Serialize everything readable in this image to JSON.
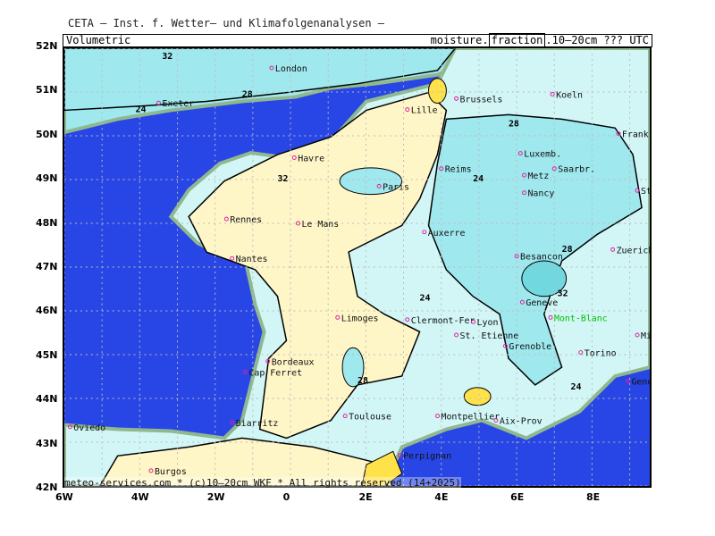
{
  "title": "CETA – Inst. f. Wetter– und Klimafolgenanalysen –",
  "header": {
    "left": "Volumetric",
    "right_prefix": "moisture.",
    "right_box": "fraction",
    "right_suffix": ".10–20cm ??? UTC"
  },
  "footer": "meteo-services.com * (c)10–20cm WKF * All rights reserved (14+2025)",
  "axes": {
    "lon_labels": [
      "6W",
      "4W",
      "2W",
      "0",
      "2E",
      "4E",
      "6E",
      "8E"
    ],
    "lat_labels": [
      "52N",
      "51N",
      "50N",
      "49N",
      "48N",
      "47N",
      "46N",
      "45N",
      "44N",
      "43N",
      "42N"
    ],
    "lon_range": [
      -6,
      9.5
    ],
    "lat_range": [
      42,
      52
    ]
  },
  "colors": {
    "ocean": "#2846e6",
    "land_wet": "#9fe8ee",
    "land_mid": "#d2f6f6",
    "land_dry": "#fff6c8",
    "land_very_dry": "#ffe24a",
    "coast": "#8fb88f"
  },
  "contour_labels": [
    "32",
    "28",
    "24",
    "28",
    "32",
    "24",
    "28",
    "32",
    "24",
    "28",
    "24"
  ],
  "cities": [
    {
      "name": "Exeter",
      "lon": -3.5,
      "lat": 50.75
    },
    {
      "name": "London",
      "lon": -0.5,
      "lat": 51.55
    },
    {
      "name": "Lille",
      "lon": 3.1,
      "lat": 50.6
    },
    {
      "name": "Brussels",
      "lon": 4.4,
      "lat": 50.85
    },
    {
      "name": "Koeln",
      "lon": 6.95,
      "lat": 50.95
    },
    {
      "name": "Frankfurt",
      "lon": 8.7,
      "lat": 50.05
    },
    {
      "name": "Luxemb.",
      "lon": 6.1,
      "lat": 49.6
    },
    {
      "name": "Reims",
      "lon": 4.0,
      "lat": 49.25
    },
    {
      "name": "Saarbr.",
      "lon": 7.0,
      "lat": 49.25
    },
    {
      "name": "Metz",
      "lon": 6.2,
      "lat": 49.1
    },
    {
      "name": "Havre",
      "lon": 0.1,
      "lat": 49.5
    },
    {
      "name": "Paris",
      "lon": 2.35,
      "lat": 48.85
    },
    {
      "name": "Nancy",
      "lon": 6.2,
      "lat": 48.7
    },
    {
      "name": "Stuttgart",
      "lon": 9.2,
      "lat": 48.75
    },
    {
      "name": "Rennes",
      "lon": -1.7,
      "lat": 48.1
    },
    {
      "name": "Le Mans",
      "lon": 0.2,
      "lat": 48.0
    },
    {
      "name": "Auxerre",
      "lon": 3.55,
      "lat": 47.8
    },
    {
      "name": "Nantes",
      "lon": -1.55,
      "lat": 47.2
    },
    {
      "name": "Besancon",
      "lon": 6.0,
      "lat": 47.25
    },
    {
      "name": "Zuerich",
      "lon": 8.55,
      "lat": 47.4
    },
    {
      "name": "Geneve",
      "lon": 6.15,
      "lat": 46.2
    },
    {
      "name": "Clermont-Fer",
      "lon": 3.1,
      "lat": 45.8
    },
    {
      "name": "Limoges",
      "lon": 1.25,
      "lat": 45.85
    },
    {
      "name": "Lyon",
      "lon": 4.85,
      "lat": 45.75
    },
    {
      "name": "St. Etienne",
      "lon": 4.4,
      "lat": 45.45
    },
    {
      "name": "Mont-Blanc",
      "lon": 6.9,
      "lat": 45.85
    },
    {
      "name": "Milano",
      "lon": 9.2,
      "lat": 45.45
    },
    {
      "name": "Grenoble",
      "lon": 5.7,
      "lat": 45.2
    },
    {
      "name": "Torino",
      "lon": 7.7,
      "lat": 45.05
    },
    {
      "name": "Bordeaux",
      "lon": -0.6,
      "lat": 44.85
    },
    {
      "name": "Cap Ferret",
      "lon": -1.2,
      "lat": 44.6
    },
    {
      "name": "Genova",
      "lon": 8.95,
      "lat": 44.4
    },
    {
      "name": "Montpellier",
      "lon": 3.9,
      "lat": 43.6
    },
    {
      "name": "Toulouse",
      "lon": 1.45,
      "lat": 43.6
    },
    {
      "name": "Aix-Prov",
      "lon": 5.45,
      "lat": 43.5
    },
    {
      "name": "Biarritz",
      "lon": -1.55,
      "lat": 43.45
    },
    {
      "name": "Oviedo",
      "lon": -5.85,
      "lat": 43.35
    },
    {
      "name": "Perpignan",
      "lon": 2.9,
      "lat": 42.7
    },
    {
      "name": "Burgos",
      "lon": -3.7,
      "lat": 42.35
    }
  ]
}
